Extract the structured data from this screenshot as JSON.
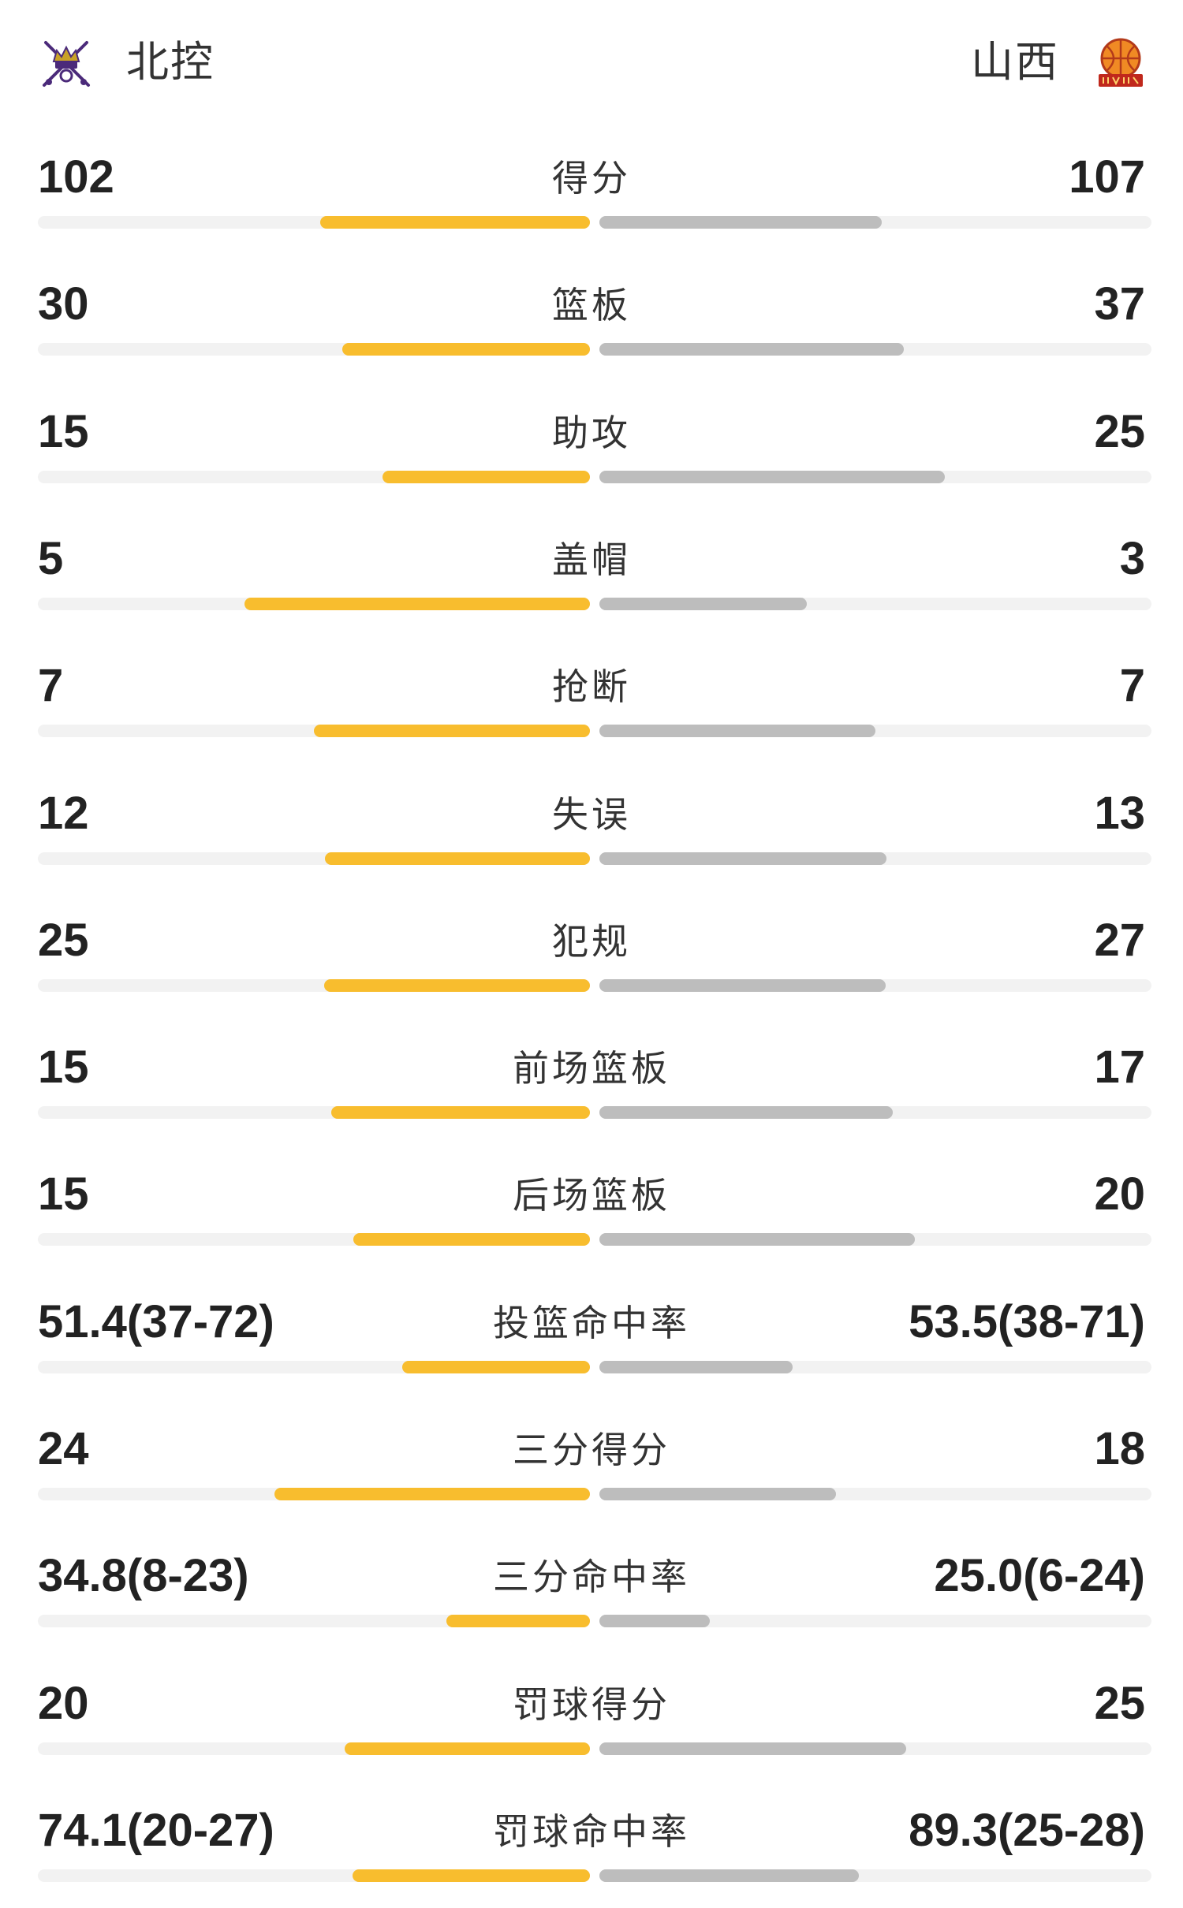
{
  "header": {
    "home_team": "北控",
    "away_team": "山西",
    "home_logo_icon": "crossed-swords-crest-icon",
    "away_logo_icon": "basketball-crest-icon"
  },
  "colors": {
    "home_bar": "#f8bd2e",
    "away_bar": "#bdbdbd",
    "track": "#f2f2f2"
  },
  "stats": [
    {
      "label": "得分",
      "home": "102",
      "away": "107",
      "home_share": 0.488,
      "away_share": 0.512
    },
    {
      "label": "篮板",
      "home": "30",
      "away": "37",
      "home_share": 0.448,
      "away_share": 0.552
    },
    {
      "label": "助攻",
      "home": "15",
      "away": "25",
      "home_share": 0.375,
      "away_share": 0.625
    },
    {
      "label": "盖帽",
      "home": "5",
      "away": "3",
      "home_share": 0.625,
      "away_share": 0.375
    },
    {
      "label": "抢断",
      "home": "7",
      "away": "7",
      "home_share": 0.5,
      "away_share": 0.5
    },
    {
      "label": "失误",
      "home": "12",
      "away": "13",
      "home_share": 0.48,
      "away_share": 0.52
    },
    {
      "label": "犯规",
      "home": "25",
      "away": "27",
      "home_share": 0.481,
      "away_share": 0.519
    },
    {
      "label": "前场篮板",
      "home": "15",
      "away": "17",
      "home_share": 0.469,
      "away_share": 0.531
    },
    {
      "label": "后场篮板",
      "home": "15",
      "away": "20",
      "home_share": 0.429,
      "away_share": 0.571
    },
    {
      "label": "投篮命中率",
      "home": "51.4(37-72)",
      "away": "53.5(38-71)",
      "home_share": 0.34,
      "away_share": 0.35
    },
    {
      "label": "三分得分",
      "home": "24",
      "away": "18",
      "home_share": 0.571,
      "away_share": 0.429
    },
    {
      "label": "三分命中率",
      "home": "34.8(8-23)",
      "away": "25.0(6-24)",
      "home_share": 0.26,
      "away_share": 0.2
    },
    {
      "label": "罚球得分",
      "home": "20",
      "away": "25",
      "home_share": 0.444,
      "away_share": 0.556
    },
    {
      "label": "罚球命中率",
      "home": "74.1(20-27)",
      "away": "89.3(25-28)",
      "home_share": 0.43,
      "away_share": 0.47
    }
  ]
}
